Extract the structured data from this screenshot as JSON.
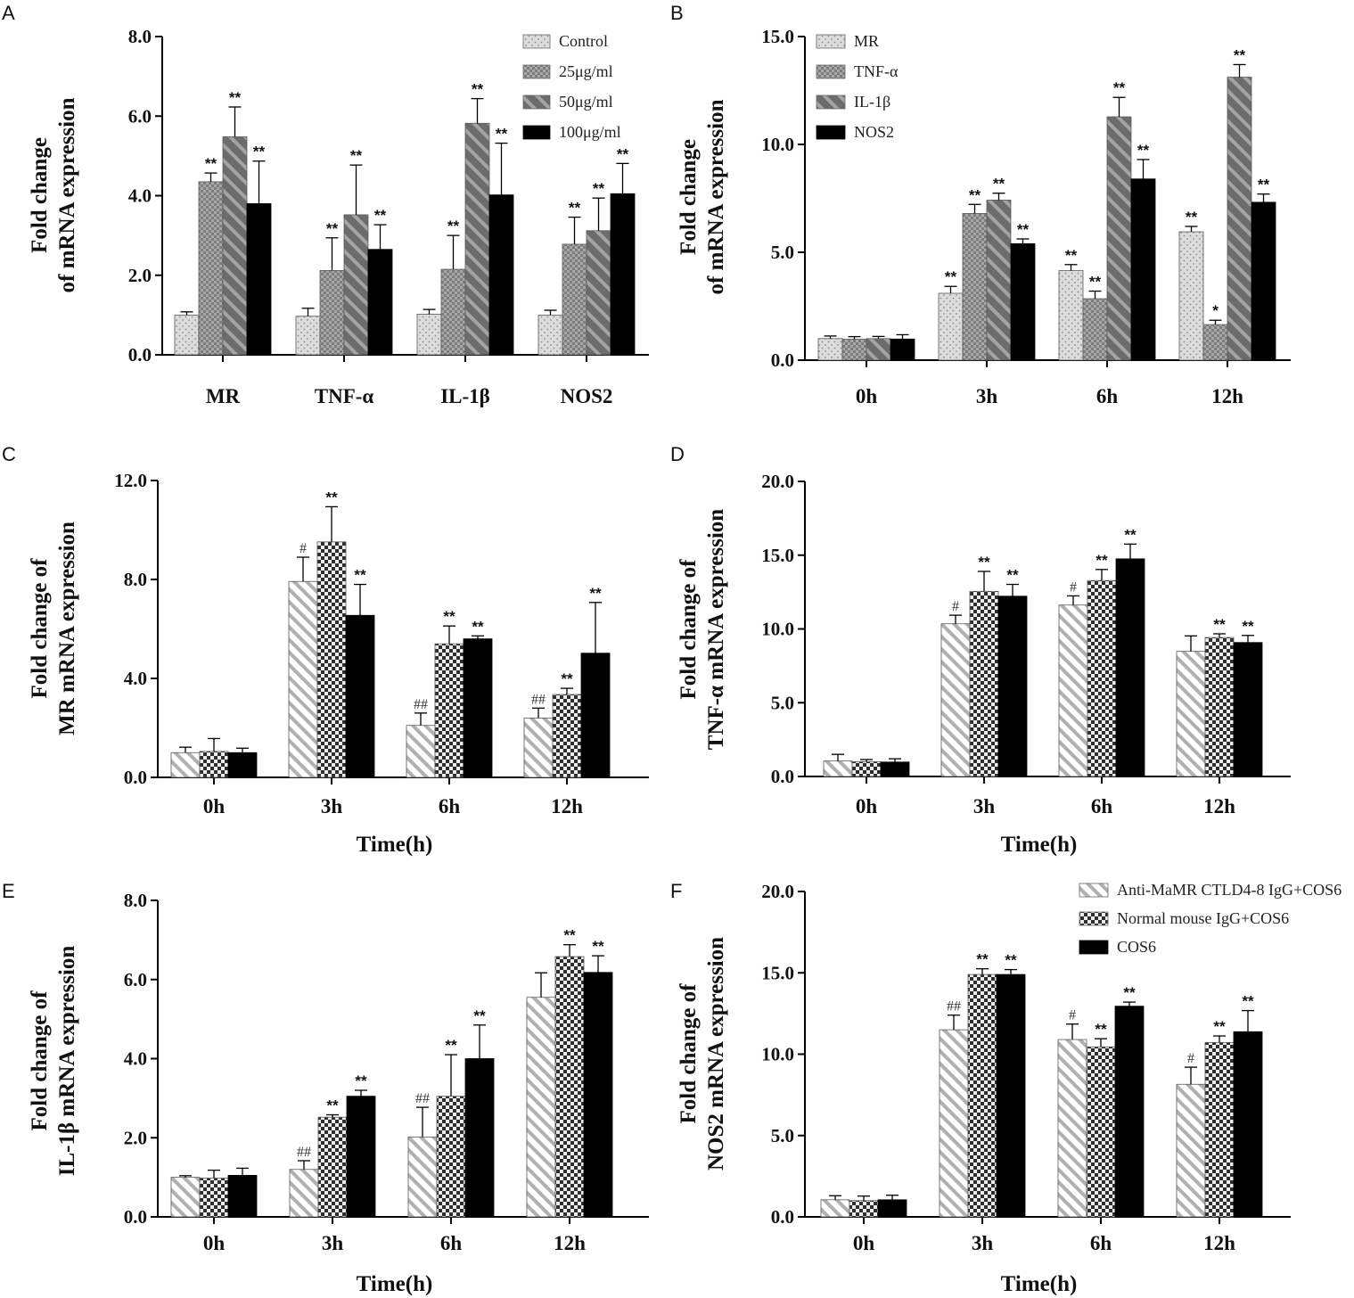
{
  "colors": {
    "control": "#d6d6d6",
    "dose25": "#9a9a9a",
    "dose50": "#7d7d7d",
    "dose100": "#000000",
    "mr": "#d6d6d6",
    "tnf": "#9a9a9a",
    "il1b": "#7d7d7d",
    "nos2": "#000000",
    "anti": "#b4b4b4",
    "normal": "#3a3a3a",
    "cos6": "#000000"
  },
  "chart_data": [
    {
      "panel": "A",
      "type": "bar",
      "ylabel": [
        "Fold change",
        "of  mRNA expression"
      ],
      "xlabel": "",
      "ylim": [
        0,
        8
      ],
      "yticks": [
        "0.0",
        "2.0",
        "4.0",
        "6.0",
        "8.0"
      ],
      "categories": [
        "MR",
        "TNF-α",
        "IL-1β",
        "NOS2"
      ],
      "legend": "top-right",
      "series": [
        {
          "name": "Control",
          "pattern": "dots",
          "values": [
            1.0,
            0.97,
            1.02,
            1.0
          ],
          "errors": [
            0.08,
            0.2,
            0.12,
            0.12
          ],
          "annotations": [
            "",
            "",
            "",
            ""
          ]
        },
        {
          "name": "25μg/ml",
          "pattern": "check",
          "values": [
            4.35,
            2.12,
            2.15,
            2.78
          ],
          "errors": [
            0.22,
            0.82,
            0.85,
            0.68
          ],
          "annotations": [
            "**",
            "**",
            "**",
            "**"
          ]
        },
        {
          "name": "50μg/ml",
          "pattern": "diag",
          "values": [
            5.48,
            3.52,
            5.82,
            3.12
          ],
          "errors": [
            0.75,
            1.25,
            0.62,
            0.82
          ],
          "annotations": [
            "**",
            "**",
            "**",
            "**"
          ]
        },
        {
          "name": "100μg/ml",
          "pattern": "solid",
          "values": [
            3.8,
            2.65,
            4.02,
            4.05
          ],
          "errors": [
            1.07,
            0.62,
            1.3,
            0.76
          ],
          "annotations": [
            "**",
            "**",
            "**",
            "**"
          ]
        }
      ]
    },
    {
      "panel": "B",
      "type": "bar",
      "ylabel": [
        "Fold change",
        "of  mRNA expression"
      ],
      "xlabel": "",
      "ylim": [
        0,
        15
      ],
      "yticks": [
        "0.0",
        "5.0",
        "10.0",
        "15.0"
      ],
      "categories": [
        "0h",
        "3h",
        "6h",
        "12h"
      ],
      "legend": "top-left",
      "series": [
        {
          "name": "MR",
          "pattern": "dots",
          "values": [
            1.0,
            3.1,
            4.15,
            5.95
          ],
          "errors": [
            0.12,
            0.32,
            0.28,
            0.25
          ],
          "annotations": [
            "",
            "**",
            "**",
            "**"
          ]
        },
        {
          "name": "TNF-α",
          "pattern": "check",
          "values": [
            0.97,
            6.8,
            2.85,
            1.65
          ],
          "errors": [
            0.12,
            0.42,
            0.35,
            0.2
          ],
          "annotations": [
            "",
            "**",
            "**",
            "*"
          ]
        },
        {
          "name": "IL-1β",
          "pattern": "diag",
          "values": [
            1.0,
            7.42,
            11.28,
            13.12
          ],
          "errors": [
            0.1,
            0.32,
            0.9,
            0.58
          ],
          "annotations": [
            "",
            "**",
            "**",
            "**"
          ]
        },
        {
          "name": "NOS2",
          "pattern": "solid",
          "values": [
            0.98,
            5.4,
            8.4,
            7.32
          ],
          "errors": [
            0.2,
            0.22,
            0.9,
            0.38
          ],
          "annotations": [
            "",
            "**",
            "**",
            "**"
          ]
        }
      ]
    },
    {
      "panel": "C",
      "type": "bar",
      "ylabel": [
        "Fold change of",
        "MR mRNA expression"
      ],
      "xlabel": "Time(h)",
      "ylim": [
        0,
        12
      ],
      "yticks": [
        "0.0",
        "4.0",
        "8.0",
        "12.0"
      ],
      "categories": [
        "0h",
        "3h",
        "6h",
        "12h"
      ],
      "legend": "none",
      "series": [
        {
          "name": "Anti-MaMR CTLD4-8 IgG+COS6",
          "pattern": "stripe",
          "values": [
            1.0,
            7.92,
            2.1,
            2.4
          ],
          "errors": [
            0.22,
            0.98,
            0.5,
            0.4
          ],
          "annotations": [
            "",
            "#",
            "##",
            "##"
          ]
        },
        {
          "name": "Normal mouse IgG+COS6",
          "pattern": "checker",
          "values": [
            1.05,
            9.52,
            5.4,
            3.35
          ],
          "errors": [
            0.52,
            1.42,
            0.72,
            0.25
          ],
          "annotations": [
            "",
            "**",
            "**",
            "**"
          ]
        },
        {
          "name": "COS6",
          "pattern": "solid",
          "values": [
            1.0,
            6.55,
            5.6,
            5.02
          ],
          "errors": [
            0.18,
            1.25,
            0.12,
            2.05
          ],
          "annotations": [
            "",
            "**",
            "**",
            "**"
          ]
        }
      ]
    },
    {
      "panel": "D",
      "type": "bar",
      "ylabel": [
        "Fold change of",
        "TNF-α mRNA expression"
      ],
      "xlabel": "Time(h)",
      "ylim": [
        0,
        20
      ],
      "yticks": [
        "0.0",
        "5.0",
        "10.0",
        "15.0",
        "20.0"
      ],
      "categories": [
        "0h",
        "3h",
        "6h",
        "12h"
      ],
      "legend": "none",
      "series": [
        {
          "name": "Anti-MaMR CTLD4-8 IgG+COS6",
          "pattern": "stripe",
          "values": [
            1.05,
            10.35,
            11.62,
            8.48
          ],
          "errors": [
            0.45,
            0.58,
            0.62,
            1.05
          ],
          "annotations": [
            "",
            "#",
            "#",
            ""
          ]
        },
        {
          "name": "Normal mouse IgG+COS6",
          "pattern": "checker",
          "values": [
            1.0,
            12.55,
            13.28,
            9.42
          ],
          "errors": [
            0.15,
            1.35,
            0.75,
            0.25
          ],
          "annotations": [
            "",
            "**",
            "**",
            "**"
          ]
        },
        {
          "name": "COS6",
          "pattern": "solid",
          "values": [
            0.98,
            12.22,
            14.75,
            9.08
          ],
          "errors": [
            0.22,
            0.8,
            1.0,
            0.48
          ],
          "annotations": [
            "",
            "**",
            "**",
            "**"
          ]
        }
      ]
    },
    {
      "panel": "E",
      "type": "bar",
      "ylabel": [
        "Fold change of",
        "IL-1β mRNA expression"
      ],
      "xlabel": "Time(h)",
      "ylim": [
        0,
        8
      ],
      "yticks": [
        "0.0",
        "2.0",
        "4.0",
        "6.0",
        "8.0"
      ],
      "categories": [
        "0h",
        "3h",
        "6h",
        "12h"
      ],
      "legend": "none",
      "series": [
        {
          "name": "Anti-MaMR CTLD4-8 IgG+COS6",
          "pattern": "stripe",
          "values": [
            1.0,
            1.2,
            2.02,
            5.55
          ],
          "errors": [
            0.04,
            0.22,
            0.75,
            0.62
          ],
          "annotations": [
            "",
            "##",
            "##",
            ""
          ]
        },
        {
          "name": "Normal mouse IgG+COS6",
          "pattern": "checker",
          "values": [
            0.98,
            2.52,
            3.05,
            6.58
          ],
          "errors": [
            0.2,
            0.06,
            1.05,
            0.3
          ],
          "annotations": [
            "",
            "**",
            "**",
            "**"
          ]
        },
        {
          "name": "COS6",
          "pattern": "solid",
          "values": [
            1.05,
            3.05,
            4.0,
            6.18
          ],
          "errors": [
            0.18,
            0.15,
            0.85,
            0.42
          ],
          "annotations": [
            "",
            "**",
            "**",
            "**"
          ]
        }
      ]
    },
    {
      "panel": "F",
      "type": "bar",
      "ylabel": [
        "Fold change of",
        "NOS2 mRNA expression"
      ],
      "xlabel": "Time(h)",
      "ylim": [
        0,
        20
      ],
      "yticks": [
        "0.0",
        "5.0",
        "10.0",
        "15.0",
        "20.0"
      ],
      "categories": [
        "0h",
        "3h",
        "6h",
        "12h"
      ],
      "legend": "top-right",
      "series": [
        {
          "name": "Anti-MaMR CTLD4-8 IgG+COS6",
          "pattern": "stripe",
          "values": [
            1.05,
            11.5,
            10.9,
            8.15
          ],
          "errors": [
            0.25,
            0.9,
            0.95,
            1.05
          ],
          "annotations": [
            "",
            "##",
            "#",
            "#"
          ]
        },
        {
          "name": "Normal mouse IgG+COS6",
          "pattern": "checker",
          "values": [
            1.0,
            14.9,
            10.45,
            10.72
          ],
          "errors": [
            0.28,
            0.35,
            0.5,
            0.4
          ],
          "annotations": [
            "",
            "**",
            "**",
            "**"
          ]
        },
        {
          "name": "COS6",
          "pattern": "solid",
          "values": [
            1.05,
            14.9,
            12.95,
            11.38
          ],
          "errors": [
            0.28,
            0.3,
            0.25,
            1.3
          ],
          "annotations": [
            "",
            "**",
            "**",
            "**"
          ]
        }
      ]
    }
  ]
}
